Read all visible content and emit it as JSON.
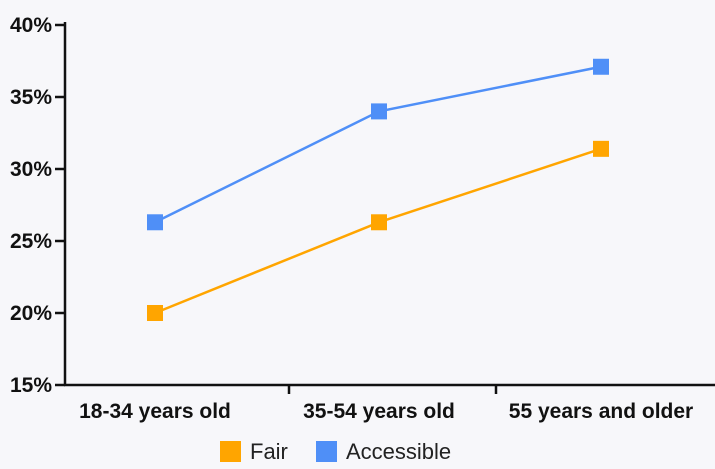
{
  "chart_data": {
    "type": "line",
    "title": "",
    "xlabel": "",
    "ylabel": "",
    "categories": [
      "18-34 years old",
      "35-54 years old",
      "55 years and older"
    ],
    "ylim": [
      15,
      40
    ],
    "y_ticks": [
      15,
      20,
      25,
      30,
      35,
      40
    ],
    "y_tick_labels": [
      "15%",
      "20%",
      "25%",
      "30%",
      "35%",
      "40%"
    ],
    "grid": false,
    "legend_position": "bottom",
    "series": [
      {
        "name": "Fair",
        "color": "#ffa500",
        "values": [
          20.0,
          26.3,
          31.4
        ]
      },
      {
        "name": "Accessible",
        "color": "#4f8ff7",
        "values": [
          26.3,
          34.0,
          37.1
        ]
      }
    ]
  }
}
